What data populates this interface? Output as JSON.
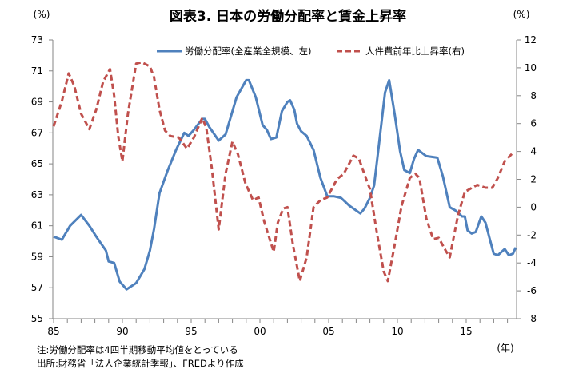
{
  "chart_data": {
    "type": "line",
    "title": "図表3. 日本の労働分配率と賃金上昇率",
    "ylabel_left": "(%)",
    "ylabel_right": "(%)",
    "xlabel": "(年)",
    "xlim": [
      1985,
      2018.6
    ],
    "ylim_left": [
      55,
      73
    ],
    "ylim_right": [
      -8,
      12
    ],
    "x_ticks": [
      1985,
      1990,
      1995,
      2000,
      2005,
      2010,
      2015
    ],
    "x_tick_labels": [
      "85",
      "90",
      "95",
      "00",
      "05",
      "10",
      "15"
    ],
    "y_left_ticks": [
      "73",
      "71",
      "69",
      "67",
      "65",
      "63",
      "61",
      "59",
      "57",
      "55"
    ],
    "y_right_ticks": [
      "12",
      "10",
      "8",
      "6",
      "4",
      "2",
      "0",
      "-2",
      "-4",
      "-6",
      "-8"
    ],
    "legend_position": "top-center",
    "grid": false,
    "series": [
      {
        "name": "労働分配率(全産業全規模、左)",
        "axis": "left",
        "color": "#4F81BD",
        "style": "solid",
        "x": [
          1985.0,
          1985.6,
          1986.2,
          1987.0,
          1987.6,
          1988.1,
          1988.8,
          1989.0,
          1989.4,
          1989.8,
          1990.3,
          1991.0,
          1991.6,
          1992.0,
          1992.3,
          1992.7,
          1993.3,
          1993.9,
          1994.5,
          1994.8,
          1995.2,
          1995.8,
          1996.0,
          1996.3,
          1997.0,
          1997.5,
          1997.8,
          1998.3,
          1999.0,
          1999.2,
          1999.7,
          2000.2,
          2000.5,
          2000.8,
          2001.2,
          2001.6,
          2002.0,
          2002.2,
          2002.5,
          2002.7,
          2003.0,
          2003.4,
          2003.9,
          2004.4,
          2004.9,
          2005.4,
          2005.9,
          2006.5,
          2007.3,
          2007.6,
          2008.0,
          2008.3,
          2008.6,
          2009.1,
          2009.4,
          2009.8,
          2010.2,
          2010.5,
          2010.9,
          2011.2,
          2011.5,
          2012.1,
          2012.9,
          2013.3,
          2013.8,
          2014.2,
          2014.7,
          2014.9,
          2015.1,
          2015.4,
          2015.7,
          2016.1,
          2016.4,
          2016.7,
          2017.0,
          2017.3,
          2017.8,
          2018.1,
          2018.4,
          2018.6
        ],
        "y": [
          60.3,
          60.1,
          61.0,
          61.7,
          61.0,
          60.3,
          59.4,
          58.7,
          58.6,
          57.4,
          56.9,
          57.3,
          58.2,
          59.4,
          60.8,
          63.1,
          64.6,
          65.9,
          67.0,
          66.8,
          67.2,
          67.9,
          67.9,
          67.4,
          66.5,
          66.9,
          67.8,
          69.3,
          70.4,
          70.4,
          69.3,
          67.5,
          67.2,
          66.6,
          66.7,
          68.4,
          69.0,
          69.1,
          68.5,
          67.6,
          67.1,
          66.8,
          65.9,
          64.1,
          62.9,
          62.9,
          62.8,
          62.3,
          61.8,
          62.1,
          62.8,
          63.6,
          65.8,
          69.6,
          70.4,
          68.2,
          65.8,
          64.6,
          64.4,
          65.3,
          65.9,
          65.5,
          65.4,
          64.2,
          62.2,
          62.0,
          61.6,
          61.6,
          60.7,
          60.5,
          60.6,
          61.6,
          61.2,
          60.2,
          59.2,
          59.1,
          59.5,
          59.1,
          59.2,
          59.6
        ]
      },
      {
        "name": "人件費前年比上昇率(右)",
        "axis": "right",
        "color": "#C0504D",
        "style": "dashed",
        "x": [
          1985.0,
          1985.6,
          1986.1,
          1986.5,
          1987.0,
          1987.6,
          1988.1,
          1988.6,
          1989.1,
          1989.4,
          1989.7,
          1990.0,
          1990.4,
          1991.0,
          1991.4,
          1992.0,
          1992.3,
          1992.7,
          1993.1,
          1993.5,
          1994.1,
          1994.7,
          1995.2,
          1995.8,
          1996.1,
          1996.5,
          1997.0,
          1997.5,
          1998.0,
          1998.4,
          1998.95,
          1999.5,
          1999.9,
          2000.3,
          2001.0,
          2001.3,
          2001.7,
          2002.0,
          2002.4,
          2002.9,
          2003.4,
          2003.9,
          2004.4,
          2004.9,
          2005.6,
          2006.1,
          2006.8,
          2007.2,
          2007.7,
          2008.0,
          2008.5,
          2009.0,
          2009.3,
          2009.8,
          2010.3,
          2010.9,
          2011.3,
          2011.6,
          2012.1,
          2012.6,
          2013.0,
          2013.5,
          2013.8,
          2014.4,
          2014.9,
          2015.8,
          2016.4,
          2016.9,
          2017.3,
          2017.8,
          2018.4
        ],
        "y": [
          5.8,
          7.6,
          9.6,
          8.7,
          6.7,
          5.6,
          7.0,
          9.0,
          9.9,
          8.0,
          5.1,
          3.3,
          6.7,
          10.3,
          10.4,
          10.1,
          9.3,
          7.0,
          5.5,
          5.1,
          5.0,
          4.2,
          5.0,
          6.4,
          5.7,
          2.8,
          -1.6,
          2.4,
          4.7,
          3.8,
          1.7,
          0.5,
          0.7,
          -1.0,
          -3.2,
          -1.1,
          -0.1,
          0.0,
          -2.7,
          -5.3,
          -3.6,
          0.0,
          0.5,
          0.7,
          2.0,
          2.4,
          3.7,
          3.5,
          2.1,
          1.3,
          -1.8,
          -4.6,
          -5.3,
          -2.7,
          0.1,
          2.1,
          2.4,
          2.1,
          -0.8,
          -2.3,
          -2.2,
          -3.1,
          -3.6,
          -0.6,
          1.1,
          1.6,
          1.4,
          1.4,
          2.1,
          3.3,
          3.9
        ]
      }
    ]
  },
  "notes": {
    "note": "注:労働分配率は4四半期移動平均値をとっている",
    "source": "出所:財務省「法人企業統計季報」、FREDより作成"
  }
}
